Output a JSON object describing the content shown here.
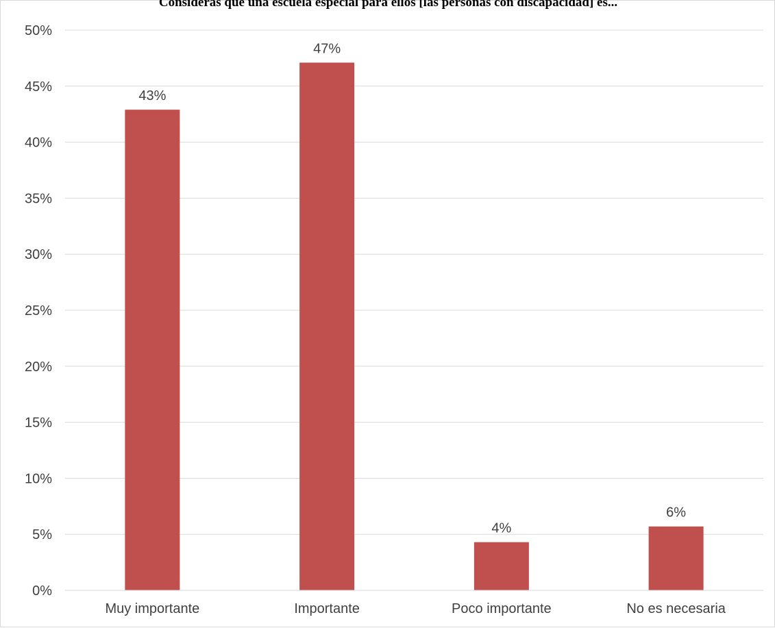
{
  "chart_data": {
    "type": "bar",
    "title": "Consideras que una escuela especial para ellos [las personas con discapacidad] es...",
    "categories": [
      "Muy importante",
      "Importante",
      "Poco importante",
      "No es necesaria"
    ],
    "values": [
      43,
      47,
      4,
      6
    ],
    "plotted_values": [
      42.9,
      47.1,
      4.3,
      5.7
    ],
    "value_labels": [
      "43%",
      "47%",
      "4%",
      "6%"
    ],
    "xlabel": "",
    "ylabel": "",
    "ylim": [
      0,
      50
    ],
    "yticks": [
      0,
      5,
      10,
      15,
      20,
      25,
      30,
      35,
      40,
      45,
      50
    ],
    "ytick_labels": [
      "0%",
      "5%",
      "10%",
      "15%",
      "20%",
      "25%",
      "30%",
      "35%",
      "40%",
      "45%",
      "50%"
    ],
    "grid": true,
    "legend": "none",
    "colors": {
      "bar": "#c0504d",
      "grid": "#d9d9d9",
      "text": "#404040"
    }
  }
}
